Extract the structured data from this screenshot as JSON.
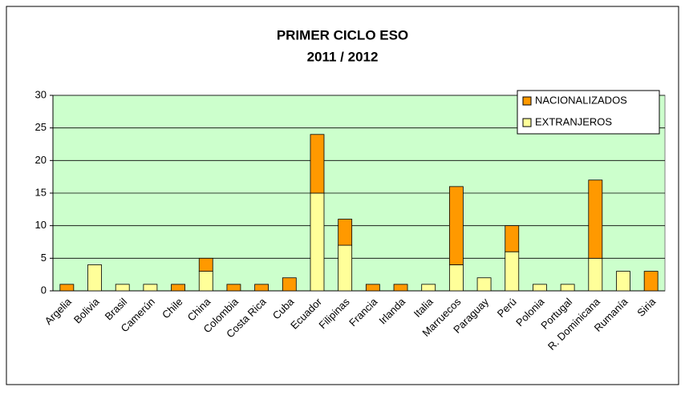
{
  "chart_data": {
    "type": "stacked_bar",
    "title": "PRIMER CICLO ESO",
    "subtitle": "2011 / 2012",
    "categories": [
      "Argelia",
      "Bolivia",
      "Brasil",
      "Camerún",
      "Chile",
      "China",
      "Colombia",
      "Costa Rica",
      "Cuba",
      "Ecuador",
      "Filipinas",
      "Francia",
      "Irlanda",
      "Italia",
      "Marruecos",
      "Paraguay",
      "Perú",
      "Polonia",
      "Portugal",
      "R. Dominicana",
      "Rumanía",
      "Siria"
    ],
    "series": [
      {
        "name": "EXTRANJEROS",
        "color": "#ffff99",
        "values": [
          0,
          4,
          1,
          1,
          0,
          3,
          0,
          0,
          0,
          15,
          7,
          0,
          0,
          1,
          4,
          2,
          6,
          1,
          1,
          5,
          3,
          0
        ]
      },
      {
        "name": "NACIONALIZADOS",
        "color": "#ff9900",
        "values": [
          1,
          0,
          0,
          0,
          1,
          2,
          1,
          1,
          2,
          9,
          4,
          1,
          1,
          0,
          12,
          0,
          4,
          0,
          0,
          12,
          0,
          3
        ]
      }
    ],
    "ylim": [
      0,
      30
    ],
    "yticks": [
      0,
      5,
      10,
      15,
      20,
      25,
      30
    ],
    "grid": true,
    "background": "#ccffcc",
    "legend": "top-right"
  }
}
